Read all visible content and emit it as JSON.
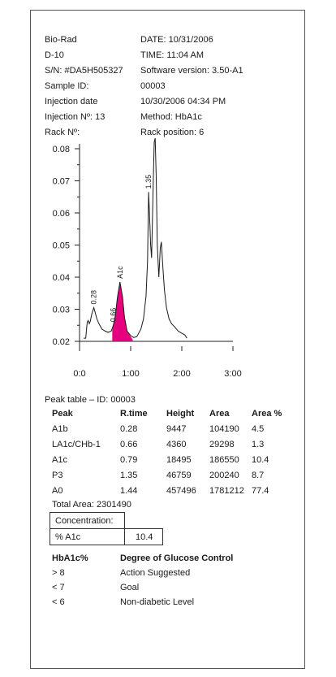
{
  "header": {
    "left": [
      "Bio-Rad",
      "D-10",
      "S/N: #DA5H505327",
      "Sample ID:",
      "Injection date",
      "Injection Nº: 13",
      "Rack Nº:"
    ],
    "right": [
      "DATE: 10/31/2006",
      "TIME: 11:04 AM",
      "Software version: 3.50-A1",
      "00003",
      "10/30/2006 04:34 PM",
      "Method: HbA1c",
      "Rack position: 6"
    ]
  },
  "chart_data": {
    "type": "line",
    "title": "",
    "xlabel": "",
    "ylabel": "",
    "xlim": [
      0,
      3
    ],
    "ylim": [
      0.02,
      0.08
    ],
    "x_ticks": [
      "0:0",
      "1:00",
      "2:00",
      "3:00"
    ],
    "y_ticks": [
      "0.02",
      "0.03",
      "0.04",
      "0.05",
      "0.06",
      "0.07",
      "0.08"
    ],
    "grid": false,
    "series": [
      {
        "x": [
          0.08,
          0.12,
          0.15,
          0.17,
          0.19,
          0.21,
          0.24,
          0.28,
          0.31,
          0.34,
          0.38,
          0.44,
          0.5,
          0.56,
          0.62,
          0.66,
          0.7,
          0.74,
          0.79,
          0.84,
          0.88,
          0.93,
          1.0,
          1.06,
          1.12,
          1.2,
          1.25,
          1.3,
          1.33,
          1.35,
          1.37,
          1.39,
          1.41,
          1.44,
          1.46,
          1.48,
          1.5,
          1.52,
          1.55,
          1.58,
          1.6,
          1.63,
          1.66,
          1.7,
          1.75,
          1.8,
          1.86,
          1.93,
          2.0,
          2.06,
          2.1
        ],
        "y": [
          0.021,
          0.021,
          0.026,
          0.0265,
          0.0255,
          0.0262,
          0.0285,
          0.0305,
          0.0288,
          0.027,
          0.0255,
          0.0238,
          0.0232,
          0.0228,
          0.0232,
          0.025,
          0.028,
          0.0335,
          0.0385,
          0.034,
          0.0275,
          0.0232,
          0.0218,
          0.0212,
          0.0215,
          0.0238,
          0.027,
          0.034,
          0.045,
          0.0665,
          0.059,
          0.05,
          0.046,
          0.068,
          0.082,
          0.09,
          0.071,
          0.05,
          0.04,
          0.049,
          0.051,
          0.043,
          0.036,
          0.0305,
          0.027,
          0.0255,
          0.0245,
          0.0232,
          0.0225,
          0.022,
          0.021
        ]
      }
    ],
    "shaded_peak": {
      "x": [
        0.64,
        0.66,
        0.68,
        0.7,
        0.72,
        0.74,
        0.76,
        0.79,
        0.81,
        0.84,
        0.86,
        0.88,
        0.9,
        0.92,
        0.94,
        0.97,
        1.0,
        1.04
      ],
      "y": [
        0.0235,
        0.025,
        0.0265,
        0.028,
        0.031,
        0.0335,
        0.036,
        0.0385,
        0.037,
        0.034,
        0.031,
        0.0275,
        0.0255,
        0.0238,
        0.0228,
        0.0222,
        0.0215,
        0.0205
      ]
    },
    "peak_labels": [
      {
        "x": 0.28,
        "y": 0.0305,
        "text": "0.28"
      },
      {
        "x": 0.66,
        "y": 0.025,
        "text": "0.66"
      },
      {
        "x": 0.79,
        "y": 0.0385,
        "text": "A1c"
      },
      {
        "x": 1.35,
        "y": 0.0665,
        "text": "1.35"
      }
    ],
    "colors": {
      "line": "#1a1a1a",
      "fill": "#e6007e"
    }
  },
  "peak_table": {
    "title": "Peak table – ID: 00003",
    "headers": [
      "Peak",
      "R.time",
      "Height",
      "Area",
      "Area %"
    ],
    "rows": [
      [
        "A1b",
        "0.28",
        "9447",
        "104190",
        "4.5"
      ],
      [
        "LA1c/CHb-1",
        "0.66",
        "4360",
        "29298",
        "1.3"
      ],
      [
        "A1c",
        "0.79",
        "18495",
        "186550",
        "10.4"
      ],
      [
        "P3",
        "1.35",
        "46759",
        "200240",
        "8.7"
      ],
      [
        "A0",
        "1.44",
        "457496",
        "1781212",
        "77.4"
      ]
    ],
    "total_area": "Total Area: 2301490"
  },
  "concentration": {
    "label": "Concentration:",
    "name": "% A1c",
    "value": "10.4"
  },
  "control": {
    "headers": [
      "HbA1c%",
      "Degree of Glucose Control"
    ],
    "rows": [
      [
        "> 8",
        "Action Suggested"
      ],
      [
        "< 7",
        "Goal"
      ],
      [
        "< 6",
        "Non-diabetic Level"
      ]
    ]
  }
}
